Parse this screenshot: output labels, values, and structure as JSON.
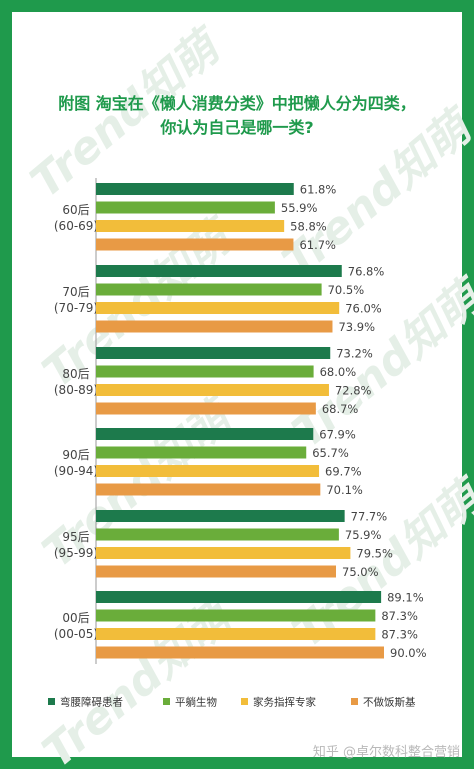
{
  "header": {
    "title_line1": "附图  淘宝在《懒人消费分类》中把懒人分为四类，",
    "title_line2": "你认为自己是哪一类?"
  },
  "logo_text": "Trend知萌",
  "footer_watermark": "知乎 @卓尔数科整合营销",
  "colors": {
    "border": "#1f9a4c",
    "title": "#1f9a4c",
    "series": [
      "#1d7a4c",
      "#6aad3a",
      "#f2bd3a",
      "#e89a45"
    ]
  },
  "chart_data": {
    "type": "bar",
    "orientation": "horizontal",
    "categories": [
      {
        "line1": "60后",
        "line2": "(60-69)"
      },
      {
        "line1": "70后",
        "line2": "(70-79)"
      },
      {
        "line1": "80后",
        "line2": "(80-89)"
      },
      {
        "line1": "90后",
        "line2": "(90-94)"
      },
      {
        "line1": "95后",
        "line2": "(95-99)"
      },
      {
        "line1": "00后",
        "line2": "(00-05)"
      }
    ],
    "series": [
      {
        "name": "弯腰障碍患者",
        "values": [
          61.8,
          76.8,
          73.2,
          67.9,
          77.7,
          89.1
        ]
      },
      {
        "name": "平躺生物",
        "values": [
          55.9,
          70.5,
          68.0,
          65.7,
          75.9,
          87.3
        ]
      },
      {
        "name": "家务指挥专家",
        "values": [
          58.8,
          76.0,
          72.8,
          69.7,
          79.5,
          87.3
        ]
      },
      {
        "name": "不做饭斯基",
        "values": [
          61.7,
          73.9,
          68.7,
          70.1,
          75.0,
          90.0
        ]
      }
    ],
    "value_suffix": "%",
    "xlim": [
      0,
      100
    ],
    "legend_position": "bottom",
    "grid": false
  }
}
